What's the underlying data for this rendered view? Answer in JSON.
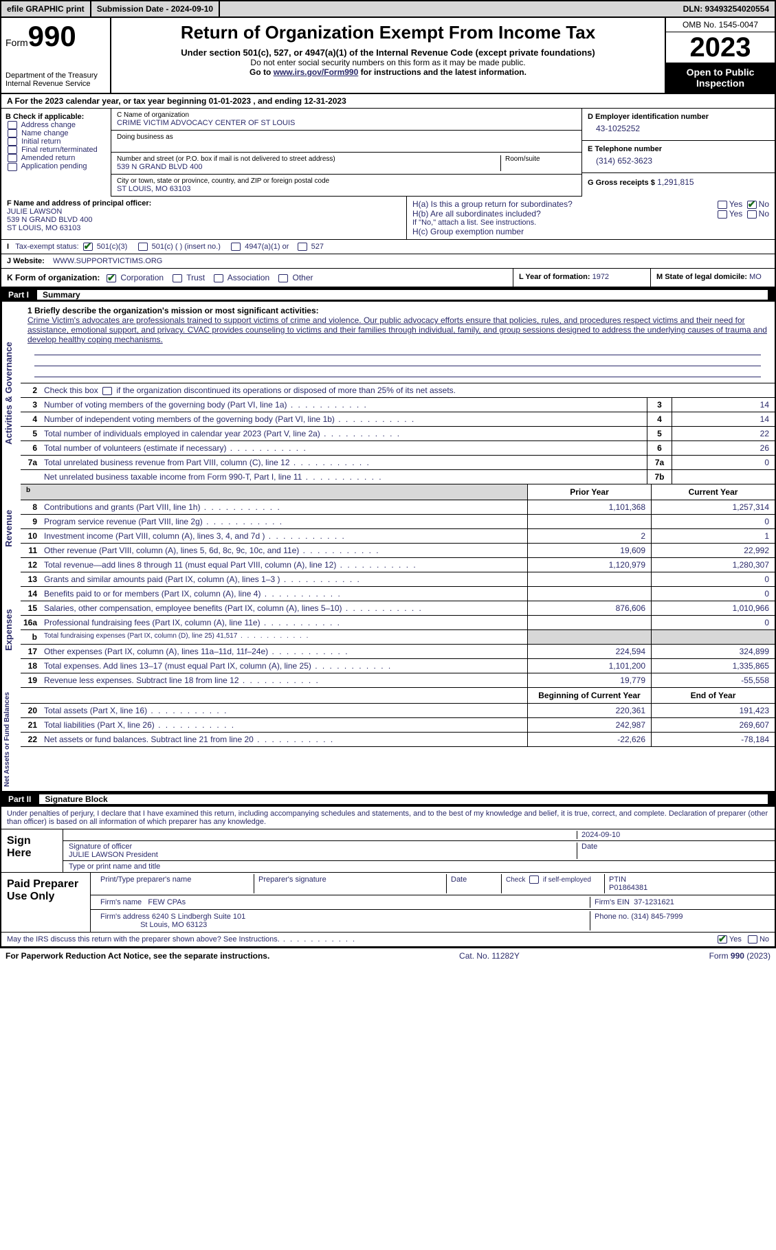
{
  "topbar": {
    "efile": "efile GRAPHIC print",
    "submission": "Submission Date - 2024-09-10",
    "dln": "DLN: 93493254020554"
  },
  "header": {
    "form_word": "Form",
    "form_num": "990",
    "dept": "Department of the Treasury Internal Revenue Service",
    "title": "Return of Organization Exempt From Income Tax",
    "subtitle": "Under section 501(c), 527, or 4947(a)(1) of the Internal Revenue Code (except private foundations)",
    "note1": "Do not enter social security numbers on this form as it may be made public.",
    "note2": "Go to www.irs.gov/Form990 for instructions and the latest information.",
    "omb": "OMB No. 1545-0047",
    "year": "2023",
    "inspect": "Open to Public Inspection"
  },
  "section_a": "A For the 2023 calendar year, or tax year beginning 01-01-2023   , and ending 12-31-2023",
  "col_b": {
    "header": "B Check if applicable:",
    "items": [
      "Address change",
      "Name change",
      "Initial return",
      "Final return/terminated",
      "Amended return",
      "Application pending"
    ]
  },
  "col_c": {
    "name_label": "C Name of organization",
    "name": "CRIME VICTIM ADVOCACY CENTER OF ST LOUIS",
    "dba_label": "Doing business as",
    "addr_label": "Number and street (or P.O. box if mail is not delivered to street address)",
    "addr": "539 N GRAND BLVD 400",
    "room_label": "Room/suite",
    "city_label": "City or town, state or province, country, and ZIP or foreign postal code",
    "city": "ST LOUIS, MO  63103"
  },
  "col_d": {
    "ein_label": "D Employer identification number",
    "ein": "43-1025252",
    "phone_label": "E Telephone number",
    "phone": "(314) 652-3623",
    "gross_label": "G Gross receipts $",
    "gross": "1,291,815"
  },
  "officer": {
    "label_f": "F Name and address of principal officer:",
    "name": "JULIE LAWSON",
    "addr1": "539 N GRAND BLVD 400",
    "addr2": "ST LOUIS, MO  63103",
    "ha": "H(a)  Is this a group return for subordinates?",
    "hb": "H(b)  Are all subordinates included?",
    "hb_note": "If \"No,\" attach a list. See instructions.",
    "hc": "H(c)  Group exemption number"
  },
  "tax_status": {
    "label": "Tax-exempt status:",
    "opt1": "501(c)(3)",
    "opt2": "501(c) (  ) (insert no.)",
    "opt3": "4947(a)(1) or",
    "opt4": "527"
  },
  "website": {
    "label": "J   Website:",
    "value": "WWW.SUPPORTVICTIMS.ORG"
  },
  "line_k": "K Form of organization:",
  "k_opts": [
    "Corporation",
    "Trust",
    "Association",
    "Other"
  ],
  "line_l": {
    "label": "L Year of formation:",
    "value": "1972"
  },
  "line_m": {
    "label": "M State of legal domicile:",
    "value": "MO"
  },
  "part1": {
    "num": "Part I",
    "title": "Summary"
  },
  "mission": {
    "q": "1   Briefly describe the organization's mission or most significant activities:",
    "text": "Crime Victim's advocates are professionals trained to support victims of crime and violence. Our public advocacy efforts ensure that policies, rules, and procedures respect victims and their need for assistance, emotional support, and privacy. CVAC provides counseling to victims and their families through individual, family, and group sessions designed to address the underlying causes of trauma and develop healthy coping mechanisms."
  },
  "line2": "Check this box       if the organization discontinued its operations or disposed of more than 25% of its net assets.",
  "gov_lines": [
    {
      "n": "3",
      "d": "Number of voting members of the governing body (Part VI, line 1a)",
      "bn": "3",
      "v": "14"
    },
    {
      "n": "4",
      "d": "Number of independent voting members of the governing body (Part VI, line 1b)",
      "bn": "4",
      "v": "14"
    },
    {
      "n": "5",
      "d": "Total number of individuals employed in calendar year 2023 (Part V, line 2a)",
      "bn": "5",
      "v": "22"
    },
    {
      "n": "6",
      "d": "Total number of volunteers (estimate if necessary)",
      "bn": "6",
      "v": "26"
    },
    {
      "n": "7a",
      "d": "Total unrelated business revenue from Part VIII, column (C), line 12",
      "bn": "7a",
      "v": "0"
    },
    {
      "n": "",
      "d": "Net unrelated business taxable income from Form 990-T, Part I, line 11",
      "bn": "7b",
      "v": ""
    }
  ],
  "rev_header": {
    "c1": "Prior Year",
    "c2": "Current Year"
  },
  "revenue": [
    {
      "n": "8",
      "d": "Contributions and grants (Part VIII, line 1h)",
      "c1": "1,101,368",
      "c2": "1,257,314"
    },
    {
      "n": "9",
      "d": "Program service revenue (Part VIII, line 2g)",
      "c1": "",
      "c2": "0"
    },
    {
      "n": "10",
      "d": "Investment income (Part VIII, column (A), lines 3, 4, and 7d )",
      "c1": "2",
      "c2": "1"
    },
    {
      "n": "11",
      "d": "Other revenue (Part VIII, column (A), lines 5, 6d, 8c, 9c, 10c, and 11e)",
      "c1": "19,609",
      "c2": "22,992"
    },
    {
      "n": "12",
      "d": "Total revenue—add lines 8 through 11 (must equal Part VIII, column (A), line 12)",
      "c1": "1,120,979",
      "c2": "1,280,307"
    }
  ],
  "expenses": [
    {
      "n": "13",
      "d": "Grants and similar amounts paid (Part IX, column (A), lines 1–3 )",
      "c1": "",
      "c2": "0"
    },
    {
      "n": "14",
      "d": "Benefits paid to or for members (Part IX, column (A), line 4)",
      "c1": "",
      "c2": "0"
    },
    {
      "n": "15",
      "d": "Salaries, other compensation, employee benefits (Part IX, column (A), lines 5–10)",
      "c1": "876,606",
      "c2": "1,010,966"
    },
    {
      "n": "16a",
      "d": "Professional fundraising fees (Part IX, column (A), line 11e)",
      "c1": "",
      "c2": "0"
    },
    {
      "n": "b",
      "d": "Total fundraising expenses (Part IX, column (D), line 25) 41,517",
      "c1": "",
      "c2": "",
      "shade": true,
      "small": true
    },
    {
      "n": "17",
      "d": "Other expenses (Part IX, column (A), lines 11a–11d, 11f–24e)",
      "c1": "224,594",
      "c2": "324,899"
    },
    {
      "n": "18",
      "d": "Total expenses. Add lines 13–17 (must equal Part IX, column (A), line 25)",
      "c1": "1,101,200",
      "c2": "1,335,865"
    },
    {
      "n": "19",
      "d": "Revenue less expenses. Subtract line 18 from line 12",
      "c1": "19,779",
      "c2": "-55,558"
    }
  ],
  "na_header": {
    "c1": "Beginning of Current Year",
    "c2": "End of Year"
  },
  "netassets": [
    {
      "n": "20",
      "d": "Total assets (Part X, line 16)",
      "c1": "220,361",
      "c2": "191,423"
    },
    {
      "n": "21",
      "d": "Total liabilities (Part X, line 26)",
      "c1": "242,987",
      "c2": "269,607"
    },
    {
      "n": "22",
      "d": "Net assets or fund balances. Subtract line 21 from line 20",
      "c1": "-22,626",
      "c2": "-78,184"
    }
  ],
  "side_labels": {
    "gov": "Activities & Governance",
    "rev": "Revenue",
    "exp": "Expenses",
    "na": "Net Assets or Fund Balances"
  },
  "part2": {
    "num": "Part II",
    "title": "Signature Block"
  },
  "sig": {
    "perjury": "Under penalties of perjury, I declare that I have examined this return, including accompanying schedules and statements, and to the best of my knowledge and belief, it is true, correct, and complete. Declaration of preparer (other than officer) is based on all information of which preparer has any knowledge.",
    "sign_here": "Sign Here",
    "sig_label": "Signature of officer",
    "officer": "JULIE LAWSON  President",
    "type_label": "Type or print name and title",
    "date": "2024-09-10",
    "date_label": "Date",
    "paid": "Paid Preparer Use Only",
    "prep_name_label": "Print/Type preparer's name",
    "prep_sig_label": "Preparer's signature",
    "check_self": "Check         if self-employed",
    "ptin_label": "PTIN",
    "ptin": "P01864381",
    "firm_label": "Firm's name",
    "firm": "FEW CPAs",
    "firm_ein_label": "Firm's EIN",
    "firm_ein": "37-1231621",
    "firm_addr_label": "Firm's address",
    "firm_addr1": "6240 S Lindbergh Suite 101",
    "firm_addr2": "St Louis, MO  63123",
    "phone_label": "Phone no.",
    "phone": "(314) 845-7999",
    "discuss": "May the IRS discuss this return with the preparer shown above? See Instructions."
  },
  "footer": {
    "pra": "For Paperwork Reduction Act Notice, see the separate instructions.",
    "cat": "Cat. No. 11282Y",
    "form": "Form 990 (2023)"
  },
  "colors": {
    "text_blue": "#2a2a6a",
    "shade_gray": "#d8d8d8",
    "check_green": "#1a6b1a"
  }
}
